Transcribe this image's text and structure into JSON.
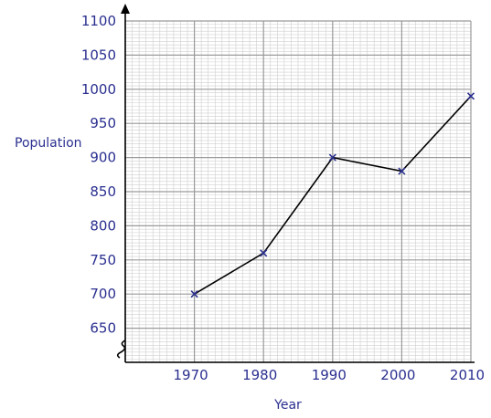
{
  "chart_data": {
    "type": "line",
    "xlabel": "Year",
    "ylabel": "Population",
    "x_ticks": [
      1970,
      1980,
      1990,
      2000,
      2010
    ],
    "y_ticks": [
      650,
      700,
      750,
      800,
      850,
      900,
      950,
      1000,
      1050,
      1100
    ],
    "xlim": [
      1960,
      2010
    ],
    "ylim": [
      600,
      1100
    ],
    "y_axis_break": true,
    "grid": true,
    "marker": "x",
    "series": [
      {
        "x": [
          1970,
          1980,
          1990,
          2000,
          2010
        ],
        "values": [
          700,
          760,
          900,
          880,
          990
        ]
      }
    ],
    "colors": {
      "text": "#2a2f8f",
      "marker": "#2a2f8f",
      "line": "#000000",
      "grid_major": "#9a9a9a",
      "grid_minor": "#cfcfcf"
    }
  }
}
